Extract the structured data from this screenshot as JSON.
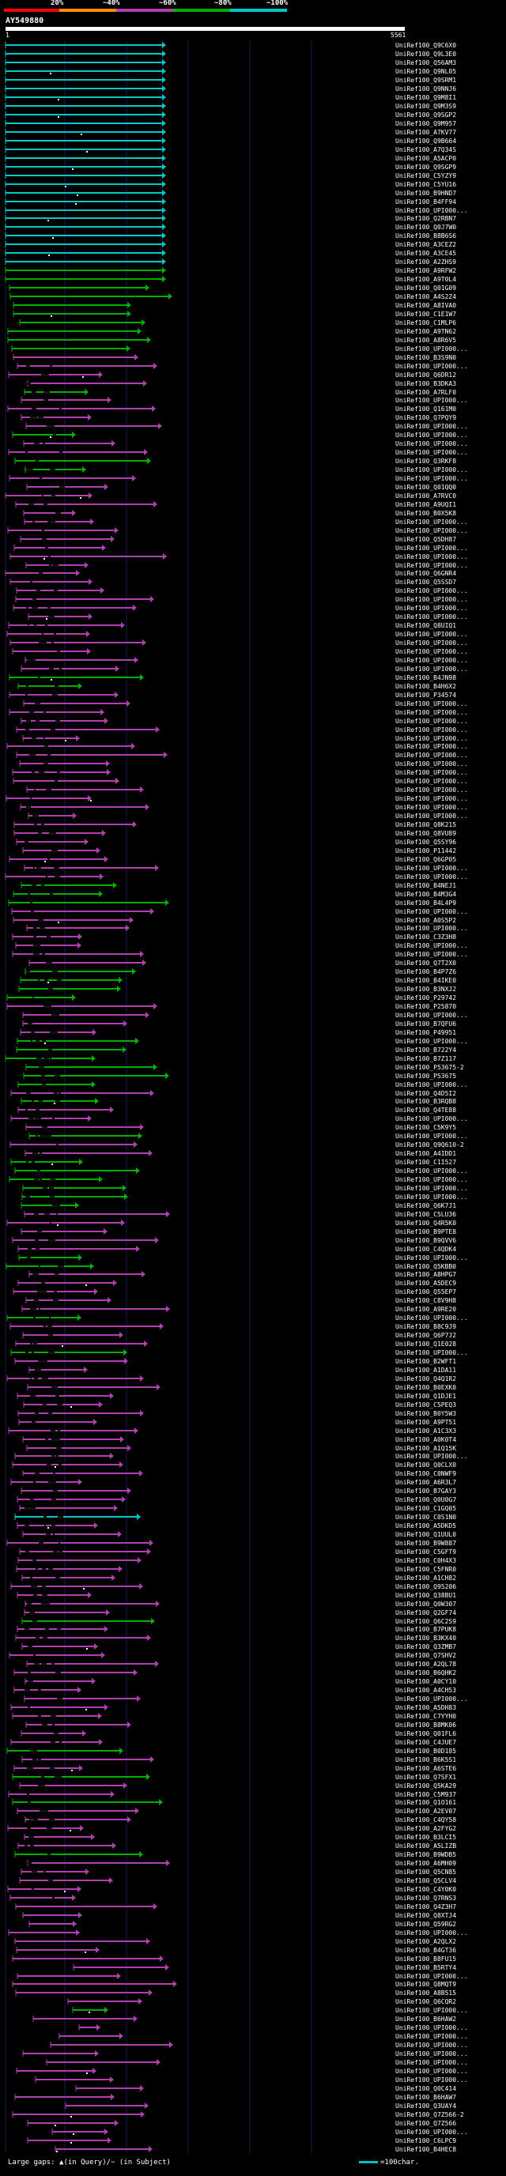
{
  "legend": {
    "labels": [
      "20%",
      "~40%",
      "~60%",
      "~80%",
      "~100%"
    ],
    "colors": [
      "#ff0000",
      "#ff8c00",
      "#b040b0",
      "#00b000",
      "#00c8c8"
    ]
  },
  "query": {
    "name": "AY549880",
    "start": "1",
    "end": "5561"
  },
  "footer": {
    "gap_label": "Large gaps: ▲(in Query)/~ (in Subject)",
    "scale_label": "=100char."
  },
  "hits": [
    {
      "name": "UniRef100_Q9C6X0",
      "c": "cyan"
    },
    {
      "name": "UniRef100_Q9L3E0",
      "c": "cyan"
    },
    {
      "name": "UniRef100_Q56AM3",
      "c": "cyan"
    },
    {
      "name": "UniRef100_Q9NL05",
      "c": "cyan"
    },
    {
      "name": "UniRef100_Q9SRM1",
      "c": "cyan"
    },
    {
      "name": "UniRef100_Q9NNJ6",
      "c": "cyan"
    },
    {
      "name": "UniRef100_Q9M8I1",
      "c": "cyan"
    },
    {
      "name": "UniRef100_Q9M3S9",
      "c": "cyan"
    },
    {
      "name": "UniRef100_Q9SGP2",
      "c": "cyan"
    },
    {
      "name": "UniRef100_Q9M957",
      "c": "cyan"
    },
    {
      "name": "UniRef100_A7KV77",
      "c": "cyan"
    },
    {
      "name": "UniRef100_Q9B664",
      "c": "cyan"
    },
    {
      "name": "UniRef100_A7Q34S",
      "c": "cyan"
    },
    {
      "name": "UniRef100_A5ACP0",
      "c": "cyan"
    },
    {
      "name": "UniRef100_Q9SGP9",
      "c": "cyan"
    },
    {
      "name": "UniRef100_C5YZY9",
      "c": "cyan"
    },
    {
      "name": "UniRef100_C5YU16",
      "c": "cyan"
    },
    {
      "name": "UniRef100_B9HND7",
      "c": "cyan"
    },
    {
      "name": "UniRef100_B4FF94",
      "c": "cyan"
    },
    {
      "name": "UniRef100_UPI000...",
      "c": "cyan"
    },
    {
      "name": "UniRef100_Q2RBN7",
      "c": "cyan"
    },
    {
      "name": "UniRef100_Q0J7W0",
      "c": "cyan"
    },
    {
      "name": "UniRef100_B8B6S6",
      "c": "cyan"
    },
    {
      "name": "UniRef100_A3CEZ2",
      "c": "cyan"
    },
    {
      "name": "UniRef100_A3CE45",
      "c": "cyan"
    },
    {
      "name": "UniRef100_A2ZHS9",
      "c": "cyan"
    },
    {
      "name": "UniRef100_A9RFW2",
      "c": "green"
    },
    {
      "name": "UniRef100_A9T0L4",
      "c": "green"
    },
    {
      "name": "UniRef100_Q01G09",
      "c": "green"
    },
    {
      "name": "UniRef100_A4S2Z4",
      "c": "green"
    },
    {
      "name": "UniRef100_A8IVA0",
      "c": "green"
    },
    {
      "name": "UniRef100_C1E1W7",
      "c": "green"
    },
    {
      "name": "UniRef100_C1MLP6",
      "c": "green"
    },
    {
      "name": "UniRef100_A9TN62",
      "c": "green"
    },
    {
      "name": "UniRef100_A8R6V5",
      "c": "green"
    },
    {
      "name": "UniRef100_UPI000...",
      "c": "green"
    },
    {
      "name": "UniRef100_B3S9N0",
      "c": "magenta"
    },
    {
      "name": "UniRef100_UPI000...",
      "c": "magenta"
    },
    {
      "name": "UniRef100_Q6DR12",
      "c": "magenta"
    },
    {
      "name": "UniRef100_B3DKA3",
      "c": "magenta"
    },
    {
      "name": "UniRef100_A7RLF0",
      "c": "green"
    },
    {
      "name": "UniRef100_UPI000...",
      "c": "magenta"
    },
    {
      "name": "UniRef100_Q161M0",
      "c": "magenta"
    },
    {
      "name": "UniRef100_Q7PQY9",
      "c": "magenta"
    },
    {
      "name": "UniRef100_UPI000...",
      "c": "magenta"
    },
    {
      "name": "UniRef100_UPI000...",
      "c": "green"
    },
    {
      "name": "UniRef100_UPI000...",
      "c": "magenta"
    },
    {
      "name": "UniRef100_UPI000...",
      "c": "magenta"
    },
    {
      "name": "UniRef100_Q3RKF8",
      "c": "green"
    },
    {
      "name": "UniRef100_UPI000...",
      "c": "green"
    },
    {
      "name": "UniRef100_UPI000...",
      "c": "magenta"
    },
    {
      "name": "UniRef100_Q01QQ0",
      "c": "magenta"
    },
    {
      "name": "UniRef100_A7RVC0",
      "c": "magenta"
    },
    {
      "name": "UniRef100_A9UQI1",
      "c": "magenta"
    },
    {
      "name": "UniRef100_B0X5K8",
      "c": "magenta"
    },
    {
      "name": "UniRef100_UPI000...",
      "c": "magenta"
    },
    {
      "name": "UniRef100_UPI000...",
      "c": "magenta"
    },
    {
      "name": "UniRef100_Q5DH87",
      "c": "magenta"
    },
    {
      "name": "UniRef100_UPI000...",
      "c": "magenta"
    },
    {
      "name": "UniRef100_UPI000...",
      "c": "magenta"
    },
    {
      "name": "UniRef100_UPI000...",
      "c": "magenta"
    },
    {
      "name": "UniRef100_Q6GNR4",
      "c": "magenta"
    },
    {
      "name": "UniRef100_Q5SSD7",
      "c": "magenta"
    },
    {
      "name": "UniRef100_UPI000...",
      "c": "magenta"
    },
    {
      "name": "UniRef100_UPI000...",
      "c": "magenta"
    },
    {
      "name": "UniRef100_UPI000...",
      "c": "magenta"
    },
    {
      "name": "UniRef100_UPI000...",
      "c": "magenta"
    },
    {
      "name": "UniRef100_Q8UIQ1",
      "c": "magenta"
    },
    {
      "name": "UniRef100_UPI000...",
      "c": "magenta"
    },
    {
      "name": "UniRef100_UPI000...",
      "c": "magenta"
    },
    {
      "name": "UniRef100_UPI000...",
      "c": "magenta"
    },
    {
      "name": "UniRef100_UPI000...",
      "c": "magenta"
    },
    {
      "name": "UniRef100_UPI000...",
      "c": "magenta"
    },
    {
      "name": "UniRef100_B4JN98",
      "c": "green"
    },
    {
      "name": "UniRef100_B4H6X2",
      "c": "green"
    },
    {
      "name": "UniRef100_P34574",
      "c": "magenta"
    },
    {
      "name": "UniRef100_UPI000...",
      "c": "magenta"
    },
    {
      "name": "UniRef100_UPI000...",
      "c": "magenta"
    },
    {
      "name": "UniRef100_UPI000...",
      "c": "magenta"
    },
    {
      "name": "UniRef100_UPI000...",
      "c": "magenta"
    },
    {
      "name": "UniRef100_UPI000...",
      "c": "magenta"
    },
    {
      "name": "UniRef100_UPI000...",
      "c": "magenta"
    },
    {
      "name": "UniRef100_UPI000...",
      "c": "magenta"
    },
    {
      "name": "UniRef100_UPI000...",
      "c": "magenta"
    },
    {
      "name": "UniRef100_UPI000...",
      "c": "magenta"
    },
    {
      "name": "UniRef100_UPI000...",
      "c": "magenta"
    },
    {
      "name": "UniRef100_UPI000...",
      "c": "magenta"
    },
    {
      "name": "UniRef100_UPI000...",
      "c": "magenta"
    },
    {
      "name": "UniRef100_UPI000...",
      "c": "magenta"
    },
    {
      "name": "UniRef100_UPI000...",
      "c": "magenta"
    },
    {
      "name": "UniRef100_Q8K215",
      "c": "magenta"
    },
    {
      "name": "UniRef100_Q8VU89",
      "c": "magenta"
    },
    {
      "name": "UniRef100_Q5SY96",
      "c": "magenta"
    },
    {
      "name": "UniRef100_P11442",
      "c": "magenta"
    },
    {
      "name": "UniRef100_Q6GP05",
      "c": "magenta"
    },
    {
      "name": "UniRef100_UPI000...",
      "c": "magenta"
    },
    {
      "name": "UniRef100_UPI000...",
      "c": "magenta"
    },
    {
      "name": "UniRef100_B4NEJ1",
      "c": "green"
    },
    {
      "name": "UniRef100_B4M3G4",
      "c": "green"
    },
    {
      "name": "UniRef100_B4L4P9",
      "c": "green"
    },
    {
      "name": "UniRef100_UPI000...",
      "c": "magenta"
    },
    {
      "name": "UniRef100_A0S5P2",
      "c": "magenta"
    },
    {
      "name": "UniRef100_UPI000...",
      "c": "magenta"
    },
    {
      "name": "UniRef100_C3Z3H8",
      "c": "magenta"
    },
    {
      "name": "UniRef100_UPI000...",
      "c": "magenta"
    },
    {
      "name": "UniRef100_UPI000...",
      "c": "magenta"
    },
    {
      "name": "UniRef100_Q7T2X0",
      "c": "magenta"
    },
    {
      "name": "UniRef100_B4P7Z6",
      "c": "green"
    },
    {
      "name": "UniRef100_B4IKE0",
      "c": "green"
    },
    {
      "name": "UniRef100_B3NXJ2",
      "c": "green"
    },
    {
      "name": "UniRef100_P29742",
      "c": "green"
    },
    {
      "name": "UniRef100_P25870",
      "c": "magenta"
    },
    {
      "name": "UniRef100_UPI000...",
      "c": "magenta"
    },
    {
      "name": "UniRef100_B7QFU6",
      "c": "magenta"
    },
    {
      "name": "UniRef100_P49951",
      "c": "magenta"
    },
    {
      "name": "UniRef100_UPI000...",
      "c": "green"
    },
    {
      "name": "UniRef100_B722Y4",
      "c": "green"
    },
    {
      "name": "UniRef100_B7Z117",
      "c": "green"
    },
    {
      "name": "UniRef100_P53675-2",
      "c": "green"
    },
    {
      "name": "UniRef100_P53675",
      "c": "green"
    },
    {
      "name": "UniRef100_UPI000...",
      "c": "green"
    },
    {
      "name": "UniRef100_Q4D5I2",
      "c": "magenta"
    },
    {
      "name": "UniRef100_B3RQB8",
      "c": "green"
    },
    {
      "name": "UniRef100_Q4TE88",
      "c": "magenta"
    },
    {
      "name": "UniRef100_UPI000...",
      "c": "magenta"
    },
    {
      "name": "UniRef100_C5K9Y5",
      "c": "magenta"
    },
    {
      "name": "UniRef100_UPI000...",
      "c": "green"
    },
    {
      "name": "UniRef100_Q9Q610-2",
      "c": "magenta"
    },
    {
      "name": "UniRef100_A4IDD1",
      "c": "magenta"
    },
    {
      "name": "UniRef100_C1I527",
      "c": "green"
    },
    {
      "name": "UniRef100_UPI000...",
      "c": "green"
    },
    {
      "name": "UniRef100_UPI000...",
      "c": "green"
    },
    {
      "name": "UniRef100_UPI000...",
      "c": "green"
    },
    {
      "name": "UniRef100_UPI000...",
      "c": "green"
    },
    {
      "name": "UniRef100_Q6K7J1",
      "c": "green"
    },
    {
      "name": "UniRef100_C5LU36",
      "c": "magenta"
    },
    {
      "name": "UniRef100_Q4R5K0",
      "c": "magenta"
    },
    {
      "name": "UniRef100_B9PTE8",
      "c": "magenta"
    },
    {
      "name": "UniRef100_B9QVV6",
      "c": "magenta"
    },
    {
      "name": "UniRef100_C4QDK4",
      "c": "magenta"
    },
    {
      "name": "UniRef100_UPI000...",
      "c": "green"
    },
    {
      "name": "UniRef100_Q5KBB0",
      "c": "green"
    },
    {
      "name": "UniRef100_A8HPG7",
      "c": "magenta"
    },
    {
      "name": "UniRef100_A5DEC9",
      "c": "magenta"
    },
    {
      "name": "UniRef100_Q55EP7",
      "c": "magenta"
    },
    {
      "name": "UniRef100_C8V9H8",
      "c": "magenta"
    },
    {
      "name": "UniRef100_A9RE20",
      "c": "magenta"
    },
    {
      "name": "UniRef100_UPI000...",
      "c": "green"
    },
    {
      "name": "UniRef100_B8C9J9",
      "c": "magenta"
    },
    {
      "name": "UniRef100_Q6P7J2",
      "c": "magenta"
    },
    {
      "name": "UniRef100_Q1E028",
      "c": "magenta"
    },
    {
      "name": "UniRef100_UPI000...",
      "c": "green"
    },
    {
      "name": "UniRef100_B2WFT1",
      "c": "magenta"
    },
    {
      "name": "UniRef100_A1DA11",
      "c": "magenta"
    },
    {
      "name": "UniRef100_Q4Q1R2",
      "c": "magenta"
    },
    {
      "name": "UniRef100_B0EXK0",
      "c": "magenta"
    },
    {
      "name": "UniRef100_Q1DJE1",
      "c": "magenta"
    },
    {
      "name": "UniRef100_C5PEQ3",
      "c": "magenta"
    },
    {
      "name": "UniRef100_B0Y5W3",
      "c": "magenta"
    },
    {
      "name": "UniRef100_A9PT51",
      "c": "magenta"
    },
    {
      "name": "UniRef100_A1C3X3",
      "c": "magenta"
    },
    {
      "name": "UniRef100_A0K0T4",
      "c": "magenta"
    },
    {
      "name": "UniRef100_A1Q15K",
      "c": "magenta"
    },
    {
      "name": "UniRef100_UPI000...",
      "c": "magenta"
    },
    {
      "name": "UniRef100_Q0CLX0",
      "c": "magenta"
    },
    {
      "name": "UniRef100_C0NWF9",
      "c": "magenta"
    },
    {
      "name": "UniRef100_A6R3L7",
      "c": "magenta"
    },
    {
      "name": "UniRef100_B7GAY3",
      "c": "magenta"
    },
    {
      "name": "UniRef100_Q0U0G7",
      "c": "magenta"
    },
    {
      "name": "UniRef100_C1GQ05",
      "c": "magenta"
    },
    {
      "name": "UniRef100_C0S1N0",
      "c": "cyan"
    },
    {
      "name": "UniRef100_A5DKD5",
      "c": "magenta"
    },
    {
      "name": "UniRef100_Q1UUL0",
      "c": "magenta"
    },
    {
      "name": "UniRef100_B9W887",
      "c": "magenta"
    },
    {
      "name": "UniRef100_C5GFT9",
      "c": "magenta"
    },
    {
      "name": "UniRef100_C0H4X3",
      "c": "magenta"
    },
    {
      "name": "UniRef100_C5FNR0",
      "c": "magenta"
    },
    {
      "name": "UniRef100_A1CH82",
      "c": "magenta"
    },
    {
      "name": "UniRef100_Q95206",
      "c": "magenta"
    },
    {
      "name": "UniRef100_Q38BU1",
      "c": "magenta"
    },
    {
      "name": "UniRef100_Q0W307",
      "c": "magenta"
    },
    {
      "name": "UniRef100_Q2GF74",
      "c": "magenta"
    },
    {
      "name": "UniRef100_Q6C2S9",
      "c": "green"
    },
    {
      "name": "UniRef100_B7PUK8",
      "c": "magenta"
    },
    {
      "name": "UniRef100_B3KX40",
      "c": "magenta"
    },
    {
      "name": "UniRef100_Q3ZMB7",
      "c": "magenta"
    },
    {
      "name": "UniRef100_Q7SHV2",
      "c": "magenta"
    },
    {
      "name": "UniRef100_A2QL78",
      "c": "magenta"
    },
    {
      "name": "UniRef100_B6QHK2",
      "c": "magenta"
    },
    {
      "name": "UniRef100_A0CY10",
      "c": "magenta"
    },
    {
      "name": "UniRef100_A4CH53",
      "c": "magenta"
    },
    {
      "name": "UniRef100_UPI000...",
      "c": "magenta"
    },
    {
      "name": "UniRef100_A5DH83",
      "c": "magenta"
    },
    {
      "name": "UniRef100_C7YYH0",
      "c": "magenta"
    },
    {
      "name": "UniRef100_B8MK06",
      "c": "magenta"
    },
    {
      "name": "UniRef100_Q01FL6",
      "c": "magenta"
    },
    {
      "name": "UniRef100_C4JUE7",
      "c": "magenta"
    },
    {
      "name": "UniRef100_B0D185",
      "c": "green"
    },
    {
      "name": "UniRef100_B6K5S1",
      "c": "magenta"
    },
    {
      "name": "UniRef100_A6STE6",
      "c": "magenta"
    },
    {
      "name": "UniRef100_Q7SFX1",
      "c": "green"
    },
    {
      "name": "UniRef100_Q5KA29",
      "c": "magenta"
    },
    {
      "name": "UniRef100_C5M937",
      "c": "magenta"
    },
    {
      "name": "UniRef100_Q1O161",
      "c": "green"
    },
    {
      "name": "UniRef100_A2EV07",
      "c": "magenta"
    },
    {
      "name": "UniRef100_C4QY58",
      "c": "magenta"
    },
    {
      "name": "UniRef100_A2FYG2",
      "c": "magenta"
    },
    {
      "name": "UniRef100_B3LCI5",
      "c": "magenta"
    },
    {
      "name": "UniRef100_A5LIZB",
      "c": "magenta"
    },
    {
      "name": "UniRef100_B9WDB5",
      "c": "green"
    },
    {
      "name": "UniRef100_A6MH09",
      "c": "magenta"
    },
    {
      "name": "UniRef100_Q5CN85",
      "c": "magenta"
    },
    {
      "name": "UniRef100_Q5CLV4",
      "c": "magenta"
    },
    {
      "name": "UniRef100_C4Y0K0",
      "c": "magenta"
    },
    {
      "name": "UniRef100_Q7RNS3",
      "c": "magenta"
    },
    {
      "name": "UniRef100_Q4Z3H7",
      "c": "magenta"
    },
    {
      "name": "UniRef100_Q8XTJ4",
      "c": "magenta"
    },
    {
      "name": "UniRef100_Q59RG2",
      "c": "magenta"
    },
    {
      "name": "UniRef100_UPI000...",
      "c": "magenta"
    },
    {
      "name": "UniRef100_A2QLX2",
      "c": "magenta"
    },
    {
      "name": "UniRef100_B4GT36",
      "c": "magenta"
    },
    {
      "name": "UniRef100_B8FU15",
      "c": "magenta"
    },
    {
      "name": "UniRef100_B5RTY4",
      "c": "magenta"
    },
    {
      "name": "UniRef100_UPI000...",
      "c": "magenta"
    },
    {
      "name": "UniRef100_Q8MQT9",
      "c": "magenta"
    },
    {
      "name": "UniRef100_A8B515",
      "c": "magenta"
    },
    {
      "name": "UniRef100_Q6CQR2",
      "c": "magenta"
    },
    {
      "name": "UniRef100_UPI000...",
      "c": "green"
    },
    {
      "name": "UniRef100_B6HAW2",
      "c": "magenta"
    },
    {
      "name": "UniRef100_UPI000...",
      "c": "magenta"
    },
    {
      "name": "UniRef100_UPI000...",
      "c": "magenta"
    },
    {
      "name": "UniRef100_UPI000...",
      "c": "magenta"
    },
    {
      "name": "UniRef100_UPI000...",
      "c": "magenta"
    },
    {
      "name": "UniRef100_UPI000...",
      "c": "magenta"
    },
    {
      "name": "UniRef100_UPI000...",
      "c": "magenta"
    },
    {
      "name": "UniRef100_UPI000...",
      "c": "magenta"
    },
    {
      "name": "UniRef100_Q0C414",
      "c": "magenta"
    },
    {
      "name": "UniRef100_B6HAW7",
      "c": "magenta"
    },
    {
      "name": "UniRef100_Q3UAY4",
      "c": "magenta"
    },
    {
      "name": "UniRef100_Q7Z566-2",
      "c": "magenta"
    },
    {
      "name": "UniRef100_Q7Z566",
      "c": "magenta"
    },
    {
      "name": "UniRef100_UPI000...",
      "c": "magenta"
    },
    {
      "name": "UniRef100_C6LPC9",
      "c": "magenta"
    },
    {
      "name": "UniRef100_B4HEC8",
      "c": "magenta"
    }
  ]
}
